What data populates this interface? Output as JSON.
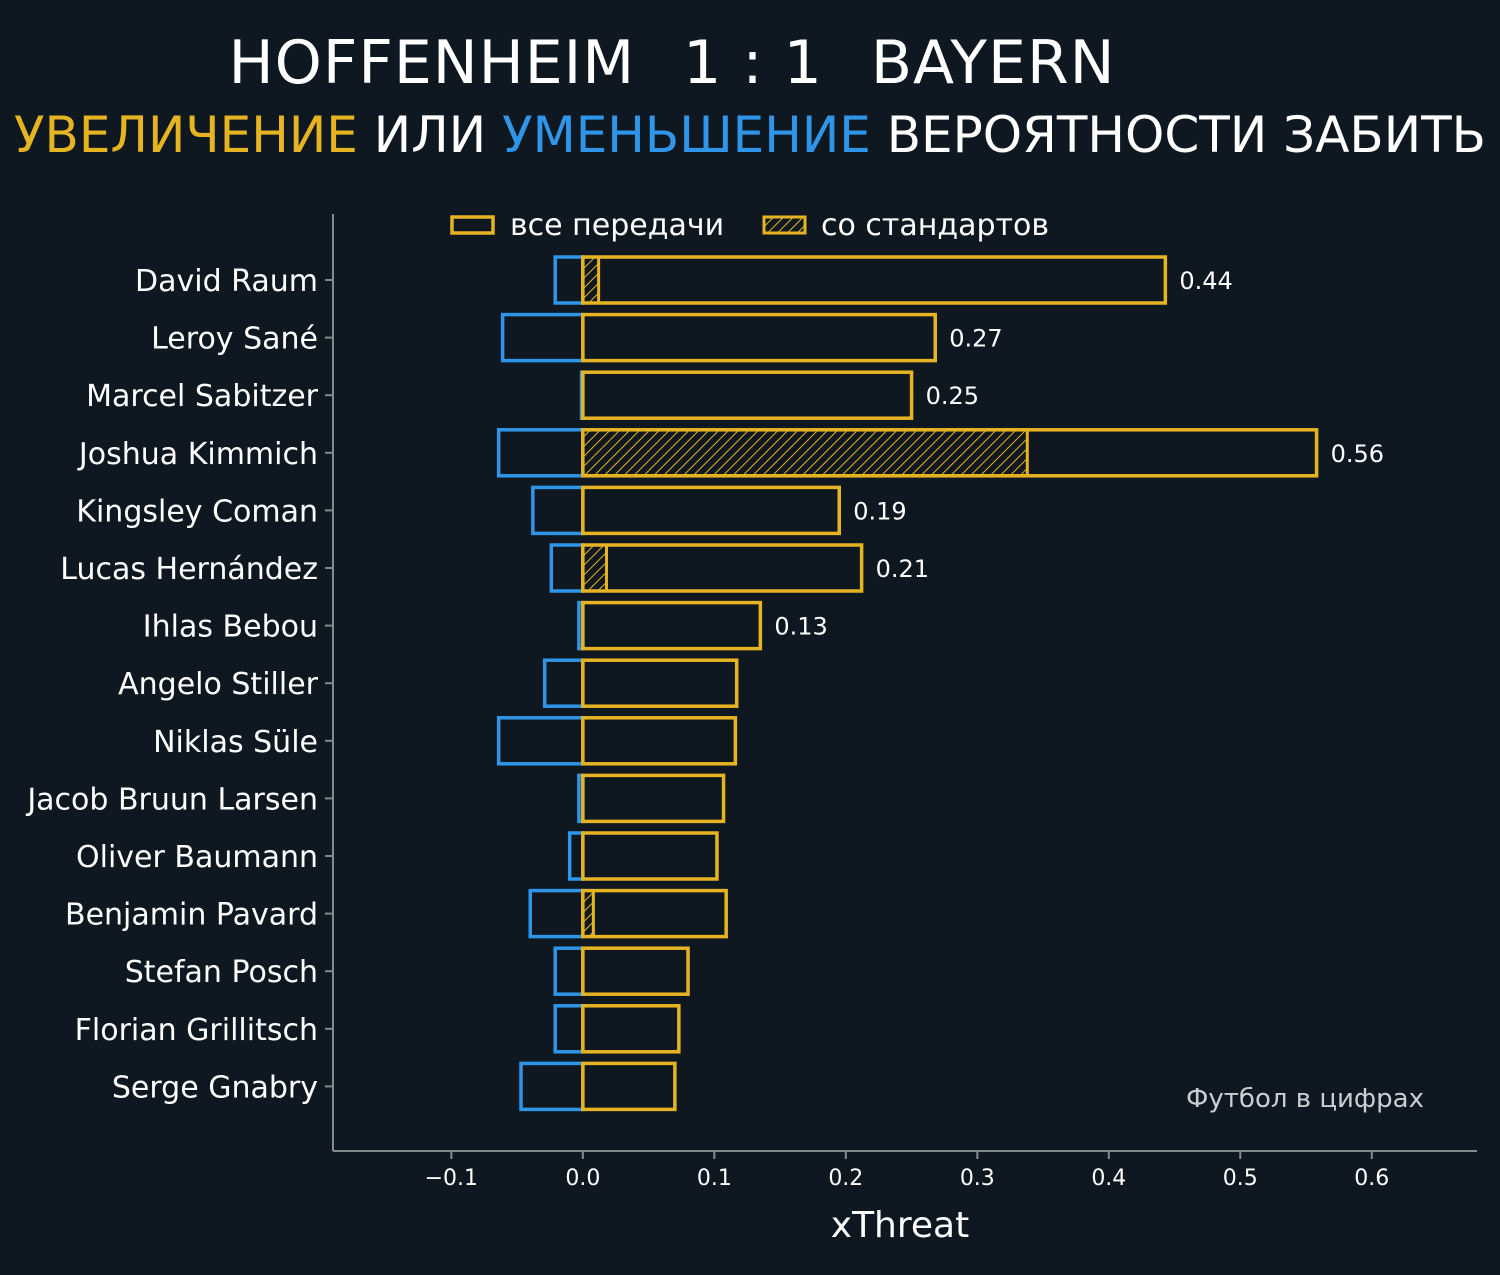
{
  "header": {
    "home_team": "HOFFENHEIM",
    "score": "1 : 1",
    "away_team": "BAYERN",
    "subtitle_increase": "УВЕЛИЧЕНИЕ",
    "subtitle_or": "ИЛИ",
    "subtitle_decrease": "УМЕНЬШЕНИЕ",
    "subtitle_rest": "ВЕРОЯТНОСТИ ЗАБИТЬ"
  },
  "watermark": "Футбол в цифрах",
  "colors": {
    "background": "#0f1820",
    "positive": "#e6b422",
    "negative": "#2f95e8",
    "axis": "#7f8c8d",
    "text": "#ffffff"
  },
  "chart_data": {
    "type": "bar",
    "orientation": "horizontal",
    "xlabel": "xThreat",
    "xlim": [
      -0.19,
      0.68
    ],
    "xticks": [
      -0.1,
      0.0,
      0.1,
      0.2,
      0.3,
      0.4,
      0.5,
      0.6
    ],
    "xtick_labels": [
      "−0.1",
      "0.0",
      "0.1",
      "0.2",
      "0.3",
      "0.4",
      "0.5",
      "0.6"
    ],
    "legend": {
      "placement": "top",
      "entries": [
        {
          "label": "все передачи",
          "style": "outline"
        },
        {
          "label": "со стандартов",
          "style": "hatched"
        }
      ]
    },
    "categories": [
      "David Raum",
      "Leroy Sané",
      "Marcel Sabitzer",
      "Joshua Kimmich",
      "Kingsley Coman",
      "Lucas Hernández",
      "Ihlas Bebou",
      "Angelo Stiller",
      "Niklas Süle",
      "Jacob Bruun Larsen",
      "Oliver Baumann",
      "Benjamin Pavard",
      "Stefan Posch",
      "Florian Grillitsch",
      "Serge Gnabry"
    ],
    "series": [
      {
        "name": "все передачи",
        "role": "positive",
        "values": [
          0.443,
          0.268,
          0.25,
          0.558,
          0.195,
          0.212,
          0.135,
          0.117,
          0.116,
          0.107,
          0.102,
          0.109,
          0.08,
          0.073,
          0.07
        ]
      },
      {
        "name": "со стандартов",
        "role": "set-pieces",
        "values": [
          0.012,
          0.0,
          0.0,
          0.338,
          0.0,
          0.018,
          0.0,
          0.0,
          0.0,
          0.0,
          0.0,
          0.008,
          0.0,
          0.0,
          0.0
        ]
      },
      {
        "role": "negative",
        "values": [
          -0.021,
          -0.061,
          -0.001,
          -0.064,
          -0.038,
          -0.024,
          -0.003,
          -0.029,
          -0.064,
          -0.003,
          -0.01,
          -0.04,
          -0.021,
          -0.021,
          -0.047
        ]
      }
    ],
    "data_labels": [
      "0.44",
      "0.27",
      "0.25",
      "0.56",
      "0.19",
      "0.21",
      "0.13",
      "",
      "",
      "",
      "",
      "",
      "",
      "",
      ""
    ]
  }
}
